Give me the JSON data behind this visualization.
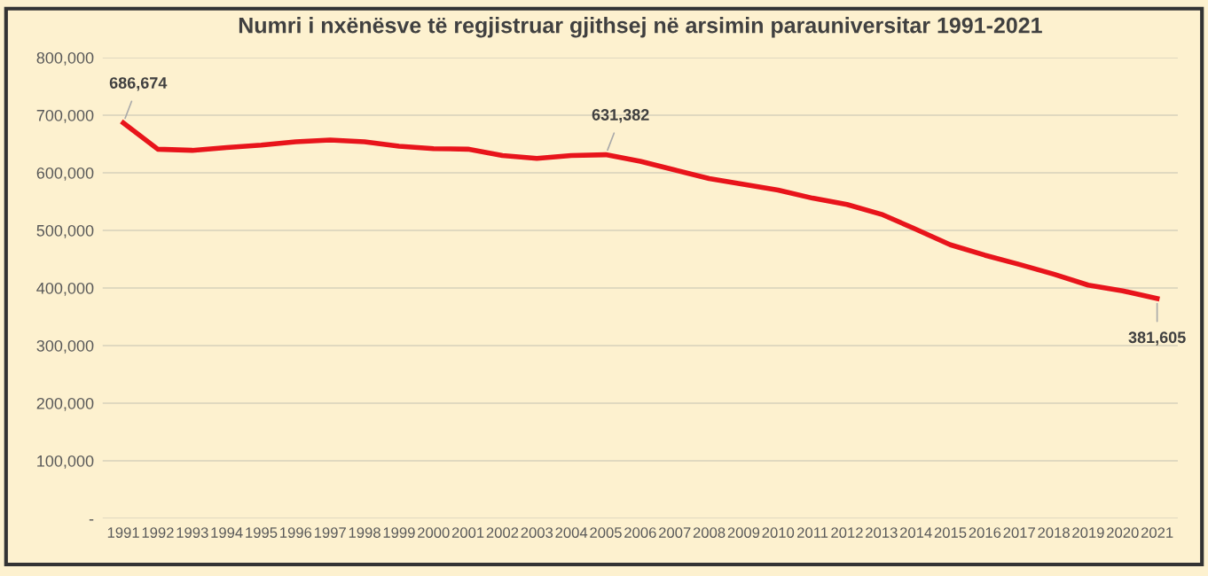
{
  "chart_data": {
    "type": "line",
    "title": "Numri i nxënësve të regjistruar gjithsej në arsimin parauniversitar 1991-2021",
    "categories": [
      "1991",
      "1992",
      "1993",
      "1994",
      "1995",
      "1996",
      "1997",
      "1998",
      "1999",
      "2000",
      "2001",
      "2002",
      "2003",
      "2004",
      "2005",
      "2006",
      "2007",
      "2008",
      "2009",
      "2010",
      "2011",
      "2012",
      "2013",
      "2014",
      "2015",
      "2016",
      "2017",
      "2018",
      "2019",
      "2020",
      "2021"
    ],
    "series": [
      {
        "color": "#e8141b",
        "values": [
          686674,
          641000,
          639000,
          644000,
          648000,
          654000,
          657000,
          654000,
          646000,
          642000,
          641000,
          630000,
          625000,
          630000,
          631382,
          620000,
          605000,
          590000,
          580000,
          570000,
          556000,
          545000,
          528000,
          502000,
          475000,
          457000,
          441000,
          424000,
          405000,
          395000,
          381605
        ],
        "value_labels": [
          "686,674",
          null,
          null,
          null,
          null,
          null,
          null,
          null,
          null,
          null,
          null,
          null,
          null,
          null,
          "631,382",
          null,
          null,
          null,
          null,
          null,
          null,
          null,
          null,
          null,
          null,
          null,
          null,
          null,
          null,
          null,
          "381,605"
        ]
      }
    ],
    "ylim": [
      0,
      800000
    ],
    "yticks": [
      {
        "value": 0,
        "label": "-"
      },
      {
        "value": 100000,
        "label": "100,000"
      },
      {
        "value": 200000,
        "label": "200,000"
      },
      {
        "value": 300000,
        "label": "300,000"
      },
      {
        "value": 400000,
        "label": "400,000"
      },
      {
        "value": 500000,
        "label": "500,000"
      },
      {
        "value": 600000,
        "label": "600,000"
      },
      {
        "value": 700000,
        "label": "700,000"
      },
      {
        "value": 800000,
        "label": "800,000"
      }
    ],
    "grid": "y",
    "marker": "none",
    "line_style": "solid"
  }
}
